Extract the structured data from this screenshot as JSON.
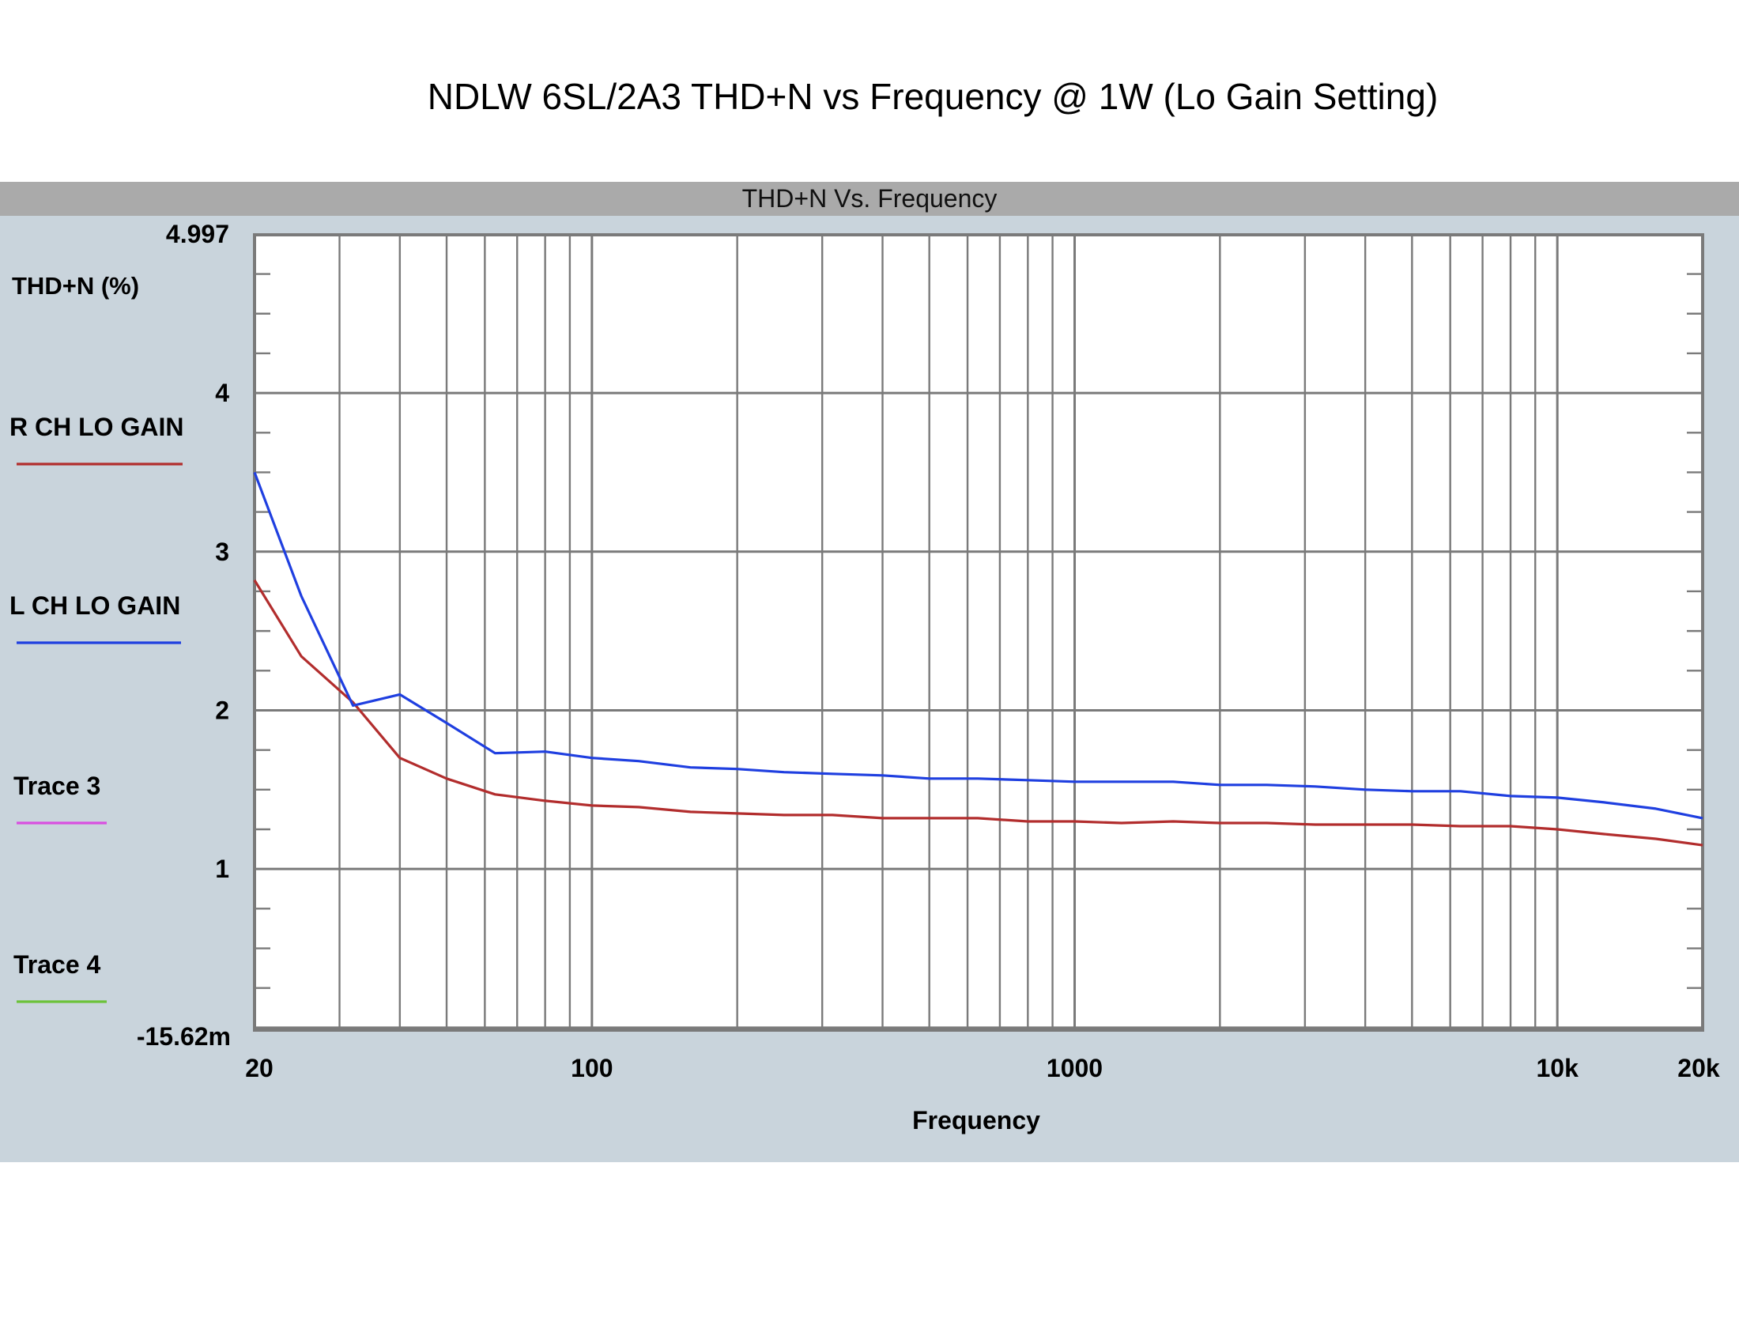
{
  "page_title": "NDLW 6SL/2A3 THD+N vs Frequency @ 1W (Lo Gain Setting)",
  "panel_title": "THD+N Vs. Frequency",
  "colors": {
    "panel_bg": "#c9d4dc",
    "header_bg": "#aaaaaa",
    "plot_bg": "#ffffff",
    "grid": "#7a7a7a",
    "r_ch": "#b22d2d",
    "l_ch": "#1f3fe0",
    "trace3": "#d84fe0",
    "trace4": "#6cc23a"
  },
  "chart_data": {
    "type": "line",
    "title": "THD+N Vs. Frequency",
    "xlabel": "Frequency",
    "ylabel": "THD+N (%)",
    "x_scale": "log",
    "xlim": [
      20,
      20000
    ],
    "ylim": [
      -0.01562,
      4.997
    ],
    "y_top_label": "4.997",
    "y_bottom_label": "-15.62m",
    "y_ticks": [
      {
        "value": 4,
        "label": "4"
      },
      {
        "value": 3,
        "label": "3"
      },
      {
        "value": 2,
        "label": "2"
      },
      {
        "value": 1,
        "label": "1"
      }
    ],
    "x_ticks": [
      {
        "value": 20,
        "label": "20"
      },
      {
        "value": 100,
        "label": "100"
      },
      {
        "value": 1000,
        "label": "1000"
      },
      {
        "value": 10000,
        "label": "10k"
      },
      {
        "value": 20000,
        "label": "20k"
      }
    ],
    "grid": true,
    "legend_position": "left",
    "series": [
      {
        "name": "R CH LO GAIN",
        "x": [
          20,
          25,
          32,
          40,
          50,
          63,
          80,
          100,
          125,
          160,
          200,
          250,
          315,
          400,
          500,
          630,
          800,
          1000,
          1250,
          1600,
          2000,
          2500,
          3150,
          4000,
          5000,
          6300,
          8000,
          10000,
          12500,
          16000,
          20000
        ],
        "y": [
          2.82,
          2.34,
          2.05,
          1.7,
          1.57,
          1.47,
          1.43,
          1.4,
          1.39,
          1.36,
          1.35,
          1.34,
          1.34,
          1.32,
          1.32,
          1.32,
          1.3,
          1.3,
          1.29,
          1.3,
          1.29,
          1.29,
          1.28,
          1.28,
          1.28,
          1.27,
          1.27,
          1.25,
          1.22,
          1.19,
          1.15
        ]
      },
      {
        "name": "L CH LO GAIN",
        "x": [
          20,
          25,
          32,
          40,
          50,
          63,
          80,
          100,
          125,
          160,
          200,
          250,
          315,
          400,
          500,
          630,
          800,
          1000,
          1250,
          1600,
          2000,
          2500,
          3150,
          4000,
          5000,
          6300,
          8000,
          10000,
          12500,
          16000,
          20000
        ],
        "y": [
          3.5,
          2.72,
          2.03,
          2.1,
          1.92,
          1.73,
          1.74,
          1.7,
          1.68,
          1.64,
          1.63,
          1.61,
          1.6,
          1.59,
          1.57,
          1.57,
          1.56,
          1.55,
          1.55,
          1.55,
          1.53,
          1.53,
          1.52,
          1.5,
          1.49,
          1.49,
          1.46,
          1.45,
          1.42,
          1.38,
          1.32
        ]
      },
      {
        "name": "Trace 3",
        "x": [],
        "y": []
      },
      {
        "name": "Trace 4",
        "x": [],
        "y": []
      }
    ]
  }
}
